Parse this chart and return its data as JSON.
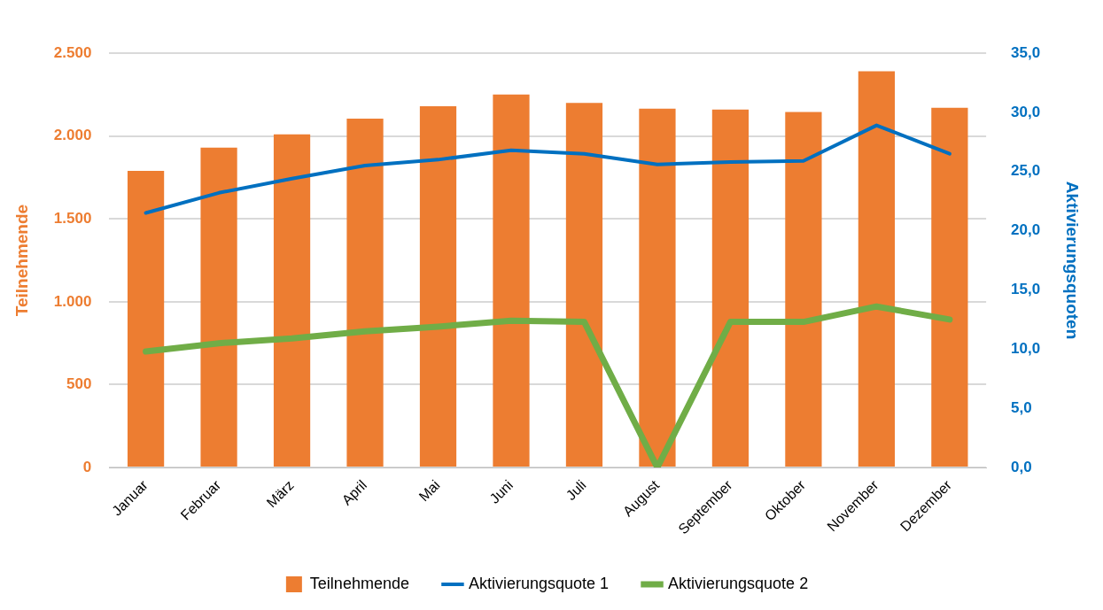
{
  "chart_data": {
    "type": "bar",
    "categories": [
      "Januar",
      "Februar",
      "März",
      "April",
      "Mai",
      "Juni",
      "Juli",
      "August",
      "September",
      "Oktober",
      "November",
      "Dezember"
    ],
    "series": [
      {
        "name": "Teilnehmende",
        "color": "#ed7d31",
        "values": [
          1790,
          1930,
          2010,
          2105,
          2180,
          2250,
          2200,
          2165,
          2160,
          2145,
          2390,
          2170
        ]
      },
      {
        "name": "Aktivierungsquote 1",
        "type": "line",
        "axis": "y2",
        "color": "#0070c0",
        "values": [
          21.5,
          23.2,
          24.4,
          25.5,
          26.0,
          26.8,
          26.5,
          25.6,
          25.8,
          25.9,
          28.9,
          26.5
        ]
      },
      {
        "name": "Aktivierungsquote 2",
        "type": "line",
        "axis": "y2",
        "color": "#70ad47",
        "values": [
          9.8,
          10.5,
          10.9,
          11.5,
          11.9,
          12.4,
          12.3,
          0,
          12.3,
          12.3,
          13.6,
          12.5
        ]
      }
    ],
    "ylabel": "Teilnehmende",
    "y2label": "Aktivierungsquoten",
    "ylim": [
      0,
      2500
    ],
    "yticks": [
      {
        "value": 0,
        "label": "0"
      },
      {
        "value": 500,
        "label": "500"
      },
      {
        "value": 1000,
        "label": "1.000"
      },
      {
        "value": 1500,
        "label": "1.500"
      },
      {
        "value": 2000,
        "label": "2.000"
      },
      {
        "value": 2500,
        "label": "2.500"
      }
    ],
    "y2lim": [
      0,
      35
    ],
    "y2ticks": [
      {
        "value": 0,
        "label": "0,0"
      },
      {
        "value": 5,
        "label": "5,0"
      },
      {
        "value": 10,
        "label": "10,0"
      },
      {
        "value": 15,
        "label": "15,0"
      },
      {
        "value": 20,
        "label": "20,0"
      },
      {
        "value": 25,
        "label": "25,0"
      },
      {
        "value": 30,
        "label": "30,0"
      },
      {
        "value": 35,
        "label": "35,0"
      }
    ],
    "grid": "y",
    "legend": "bottom",
    "marker": "none"
  }
}
